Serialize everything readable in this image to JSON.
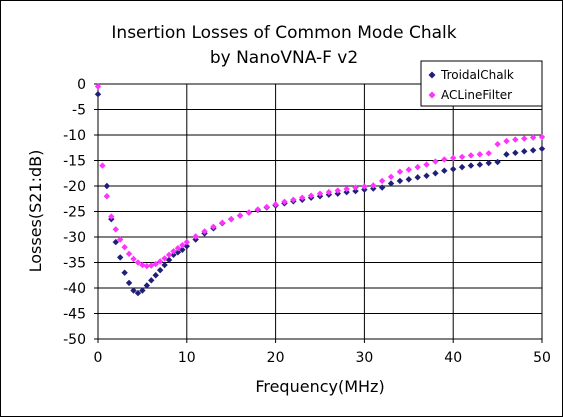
{
  "chart_data": {
    "type": "scatter",
    "title": "Insertion Losses of Common Mode Chalk",
    "subtitle": "by NanoVNA-F v2",
    "xlabel": "Frequency(MHz)",
    "ylabel": "Losses(S21:dB)",
    "xlim": [
      0,
      50
    ],
    "ylim": [
      -50,
      0
    ],
    "xticks": [
      "0",
      "10",
      "20",
      "30",
      "40",
      "50"
    ],
    "yticks": [
      "0",
      "-5",
      "-10",
      "-15",
      "-20",
      "-25",
      "-30",
      "-35",
      "-40",
      "-45",
      "-50"
    ],
    "grid": true,
    "legend_position": "top-right",
    "series": [
      {
        "name": "TroidalChalk",
        "color": "#1f1f7a",
        "marker": "diamond",
        "x": [
          0,
          1,
          1.5,
          2,
          2.5,
          3,
          3.5,
          4,
          4.5,
          5,
          5.5,
          6,
          6.5,
          7,
          7.5,
          8,
          8.5,
          9,
          9.5,
          10,
          11,
          12,
          13,
          14,
          15,
          16,
          17,
          18,
          19,
          20,
          21,
          22,
          23,
          24,
          25,
          26,
          27,
          28,
          29,
          30,
          31,
          32,
          33,
          34,
          35,
          36,
          37,
          38,
          39,
          40,
          41,
          42,
          43,
          44,
          45,
          46,
          47,
          48,
          49,
          50
        ],
        "y": [
          -2,
          -20,
          -26.5,
          -31,
          -34,
          -37,
          -39,
          -40.5,
          -41,
          -40.5,
          -39.5,
          -38.5,
          -37.5,
          -36.5,
          -35.5,
          -34.5,
          -33.5,
          -33,
          -32.5,
          -31.8,
          -30.5,
          -29.3,
          -28.3,
          -27.3,
          -26.5,
          -25.8,
          -25.2,
          -24.7,
          -24.2,
          -23.8,
          -23.4,
          -23,
          -22.7,
          -22.3,
          -22,
          -21.7,
          -21.5,
          -21.2,
          -21,
          -20.7,
          -20.5,
          -20.3,
          -19.5,
          -19,
          -18.7,
          -18.3,
          -18,
          -17.5,
          -17,
          -16.7,
          -16.3,
          -16,
          -15.8,
          -15.5,
          -15.3,
          -13.8,
          -13.5,
          -13.2,
          -13,
          -12.7
        ]
      },
      {
        "name": "ACLineFilter",
        "color": "#ff33ff",
        "marker": "diamond",
        "x": [
          0,
          0.5,
          1,
          1.5,
          2,
          2.5,
          3,
          3.5,
          4,
          4.5,
          5,
          5.5,
          6,
          6.5,
          7,
          7.5,
          8,
          8.5,
          9,
          9.5,
          10,
          11,
          12,
          13,
          14,
          15,
          16,
          17,
          18,
          19,
          20,
          21,
          22,
          23,
          24,
          25,
          26,
          27,
          28,
          29,
          30,
          31,
          32,
          33,
          34,
          35,
          36,
          37,
          38,
          39,
          40,
          41,
          42,
          43,
          44,
          45,
          46,
          47,
          48,
          49,
          50
        ],
        "y": [
          -0.5,
          -16,
          -22,
          -26,
          -28.5,
          -30.5,
          -32,
          -33.3,
          -34.3,
          -35,
          -35.5,
          -35.7,
          -35.6,
          -35.3,
          -34.8,
          -34.2,
          -33.5,
          -32.8,
          -32.2,
          -31.6,
          -31,
          -29.9,
          -28.9,
          -28,
          -27.2,
          -26.5,
          -25.8,
          -25.2,
          -24.6,
          -24.1,
          -23.6,
          -23.1,
          -22.7,
          -22.3,
          -21.9,
          -21.5,
          -21.2,
          -20.9,
          -20.6,
          -20.3,
          -20.1,
          -19.9,
          -19,
          -18.2,
          -17.2,
          -16.8,
          -16.3,
          -15.8,
          -15.2,
          -14.8,
          -14.5,
          -14.3,
          -14,
          -13.8,
          -13.6,
          -11.8,
          -11.2,
          -10.9,
          -10.7,
          -10.5,
          -10.4
        ]
      }
    ]
  }
}
